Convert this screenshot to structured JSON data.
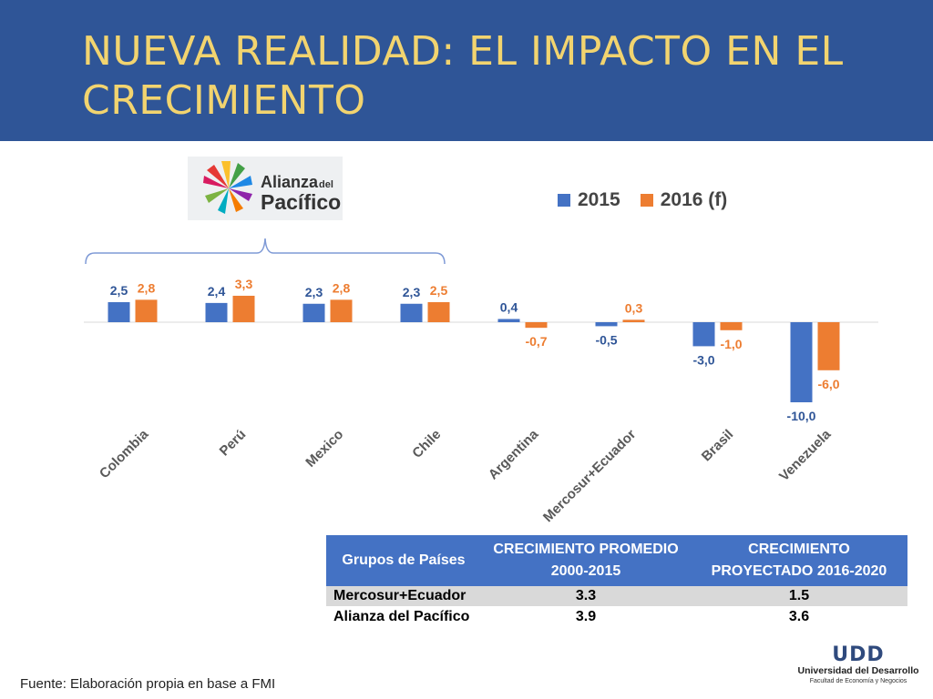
{
  "title": "NUEVA REALIDAD: EL IMPACTO EN EL CRECIMIENTO",
  "logo": {
    "text_line1": "Alianza",
    "text_small": "del",
    "text_line2": "Pacífico"
  },
  "colors": {
    "series_2015": "#4472c4",
    "series_2016": "#ed7d31",
    "header_bg": "#2f5597",
    "title": "#f2d46f",
    "label_2015": "#2f5597",
    "label_2016": "#ed7d31"
  },
  "chart_data": {
    "type": "bar",
    "categories": [
      "Colombia",
      "Perú",
      "Mexico",
      "Chile",
      "Argentina",
      "Mercosur+Ecuador",
      "Brasil",
      "Venezuela"
    ],
    "series": [
      {
        "name": "2015",
        "values": [
          2.5,
          2.4,
          2.3,
          2.3,
          0.4,
          -0.5,
          -3.0,
          -10.0
        ],
        "labels": [
          "2,5",
          "2,4",
          "2,3",
          "2,3",
          "0,4",
          "-0,5",
          "-3,0",
          "-10,0"
        ]
      },
      {
        "name": "2016 (f)",
        "values": [
          2.8,
          3.3,
          2.8,
          2.5,
          -0.7,
          0.3,
          -1.0,
          -6.0
        ],
        "labels": [
          "2,8",
          "3,3",
          "2,8",
          "2,5",
          "-0,7",
          "0,3",
          "-1,0",
          "-6,0"
        ]
      }
    ],
    "legend_position": "top-right",
    "grid": false
  },
  "table": {
    "headers": [
      "Grupos de Países",
      "CRECIMIENTO PROMEDIO 2000-2015",
      "CRECIMIENTO PROYECTADO 2016-2020"
    ],
    "rows": [
      [
        "Mercosur+Ecuador",
        "3.3",
        "1.5"
      ],
      [
        "Alianza del Pacífico",
        "3.9",
        "3.6"
      ]
    ]
  },
  "source": "Fuente: Elaboración propia en base a FMI",
  "udd_logo": {
    "mark": "UDD",
    "line1": "Universidad del Desarrollo",
    "line2": "Facultad de Economía y Negocios"
  }
}
